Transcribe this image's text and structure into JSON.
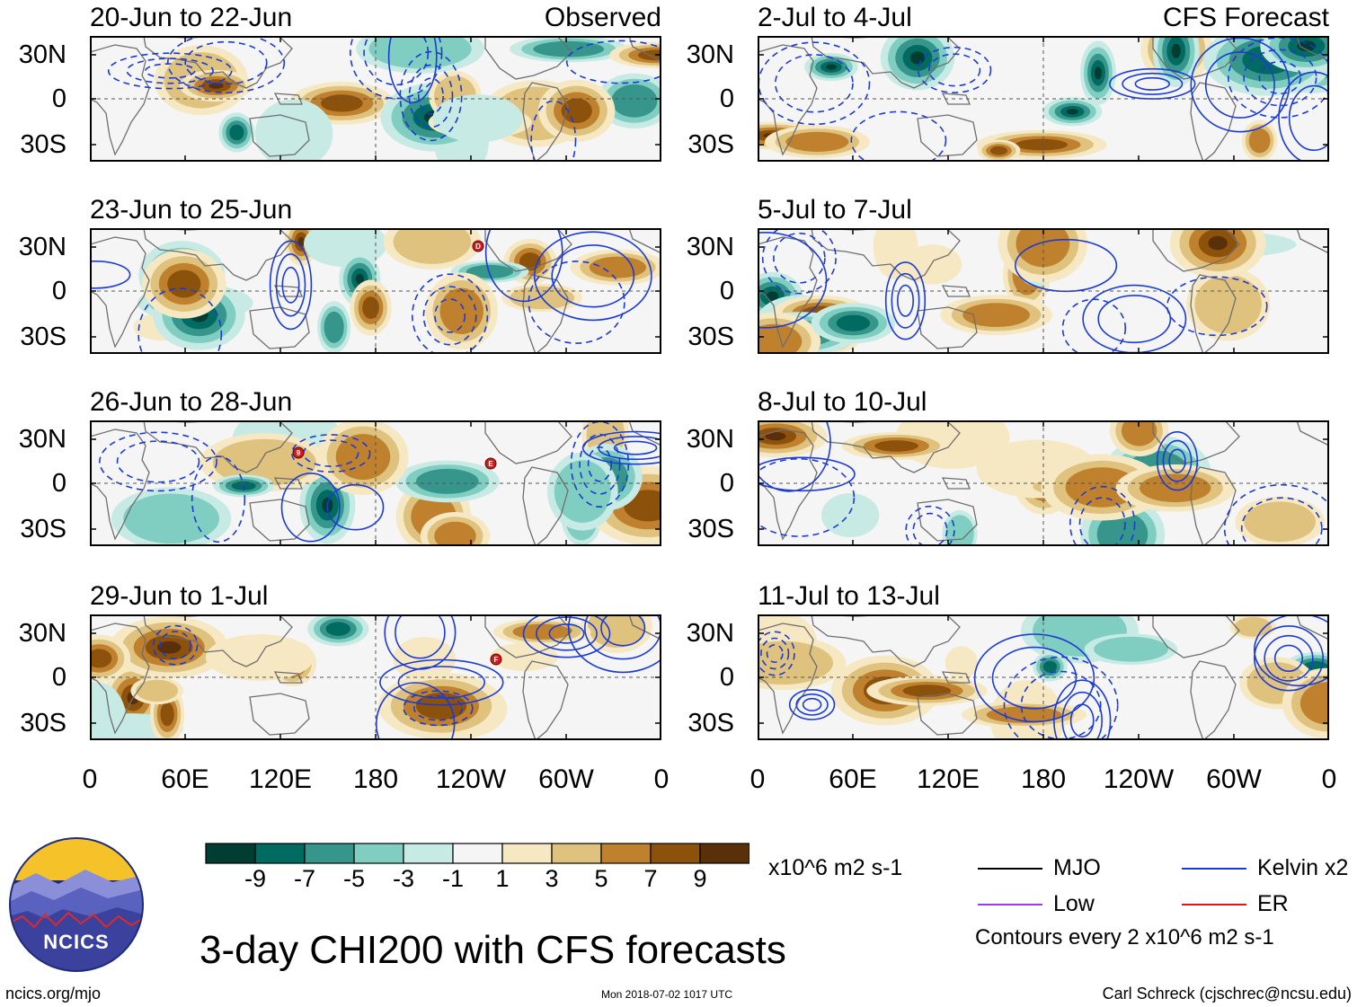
{
  "figure": {
    "title": "3-day CHI200 with CFS forecasts",
    "observed_label": "Observed",
    "forecast_label": "CFS Forecast",
    "website": "ncics.org/mjo",
    "timestamp": "Mon 2018-07-02 1017 UTC",
    "credit": "Carl Schreck (cjschrec@ncsu.edu)",
    "logo_text": "NCICS",
    "contour_note": "Contours every 2 x10^6 m2 s-1",
    "units": "x10^6 m2 s-1"
  },
  "axes": {
    "lat_ticks": [
      "30N",
      "0",
      "30S"
    ],
    "lon_ticks": [
      "0",
      "60E",
      "120E",
      "180",
      "120W",
      "60W",
      "0"
    ]
  },
  "panels": [
    {
      "period": "20-Jun to 22-Jun",
      "type": "Observed"
    },
    {
      "period": "23-Jun to 25-Jun",
      "type": "Observed"
    },
    {
      "period": "26-Jun to 28-Jun",
      "type": "Observed"
    },
    {
      "period": "29-Jun to 1-Jul",
      "type": "Observed"
    },
    {
      "period": "2-Jul to 4-Jul",
      "type": "CFS Forecast"
    },
    {
      "period": "5-Jul to 7-Jul",
      "type": "CFS Forecast"
    },
    {
      "period": "8-Jul to 10-Jul",
      "type": "CFS Forecast"
    },
    {
      "period": "11-Jul to 13-Jul",
      "type": "CFS Forecast"
    }
  ],
  "colorbar": {
    "labels": [
      "-9",
      "-7",
      "-5",
      "-3",
      "-1",
      "1",
      "3",
      "5",
      "7",
      "9"
    ],
    "colors": [
      "#013d33",
      "#026b61",
      "#36968b",
      "#80cdc1",
      "#c7eae5",
      "#f5f5f5",
      "#f6e8c3",
      "#dfc27d",
      "#bf812d",
      "#8c510a",
      "#5a300a"
    ]
  },
  "legend": [
    {
      "label": "MJO",
      "color": "#000000"
    },
    {
      "label": "Kelvin x2",
      "color": "#1b3bd6"
    },
    {
      "label": "Low",
      "color": "#9b3ee6"
    },
    {
      "label": "ER",
      "color": "#d61a1a"
    }
  ],
  "storm_markers": [
    {
      "panel": 1,
      "letter": "D"
    },
    {
      "panel": 2,
      "letter": "9"
    },
    {
      "panel": 2,
      "letter": "E"
    },
    {
      "panel": 3,
      "letter": "F"
    }
  ]
}
